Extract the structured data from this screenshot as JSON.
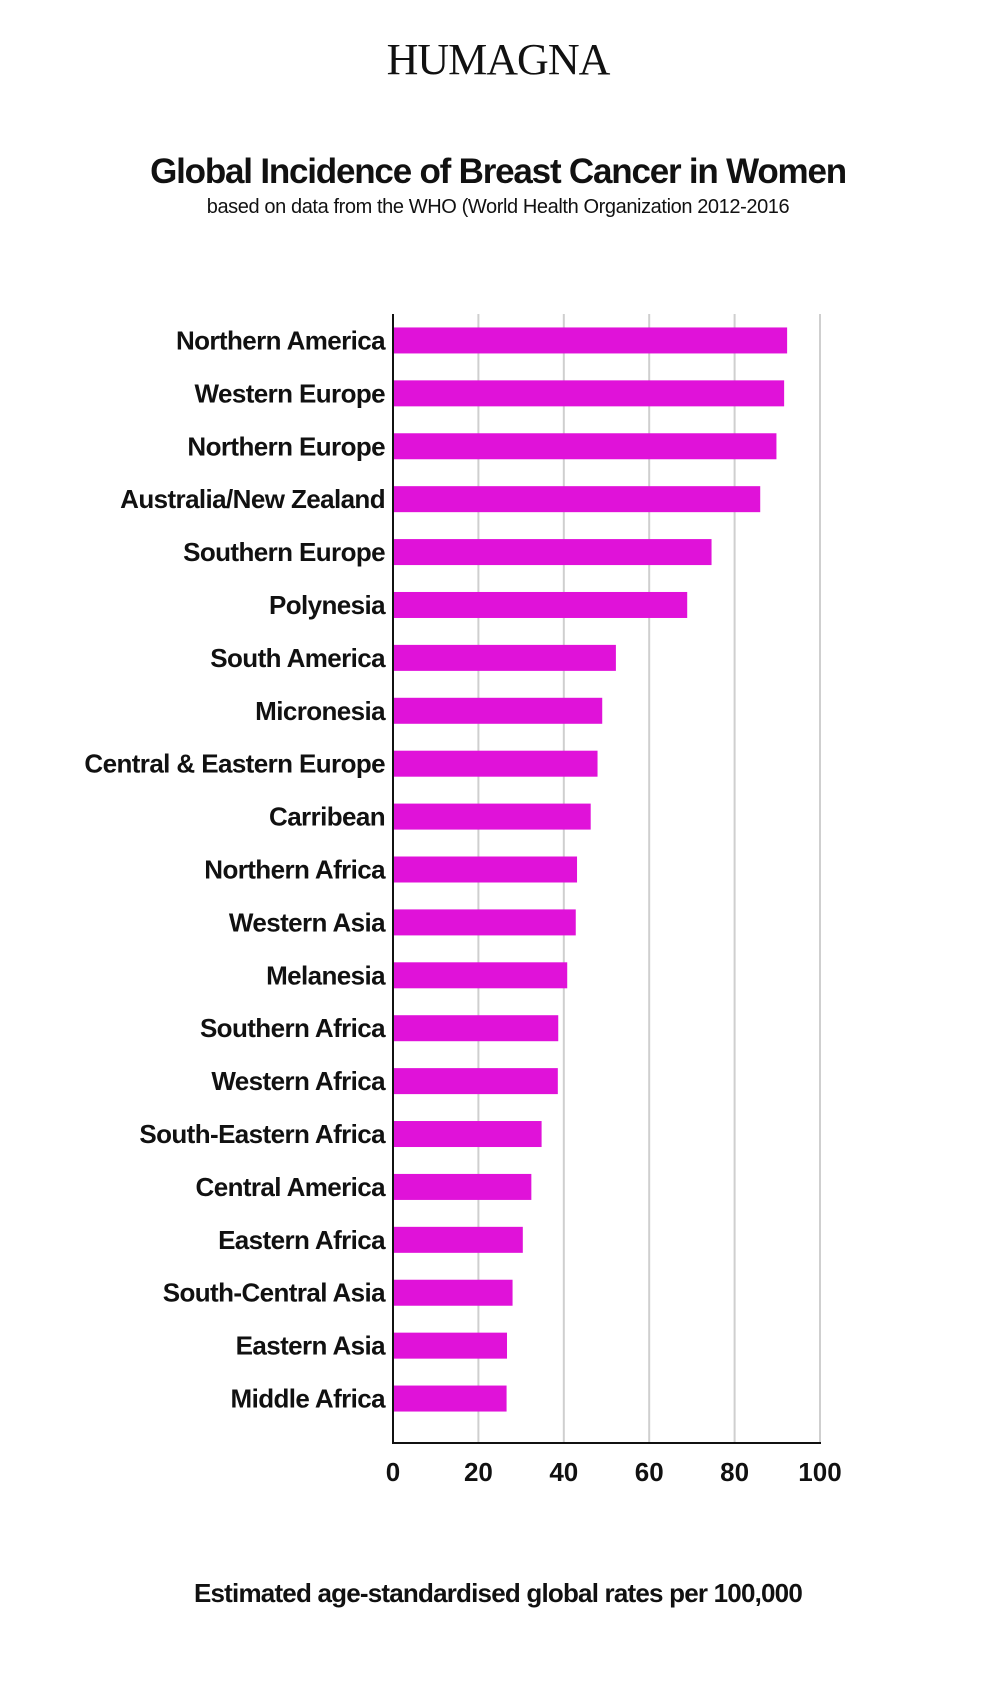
{
  "brand": "HUMAGNA",
  "chart_data": {
    "type": "bar",
    "orientation": "horizontal",
    "title": "Global Incidence of Breast Cancer in Women",
    "subtitle": "based on data from the WHO (World Health Organization 2012-2016",
    "xlabel": "Estimated age-standardised global rates per 100,000",
    "ylabel": "",
    "xlim": [
      0,
      100
    ],
    "xticks": [
      0,
      20,
      40,
      60,
      80,
      100
    ],
    "grid": true,
    "bar_color": "#e012d9",
    "categories": [
      "Northern America",
      "Western Europe",
      "Northern Europe",
      "Australia/New Zealand",
      "Southern Europe",
      "Polynesia",
      "South America",
      "Micronesia",
      "Central & Eastern Europe",
      "Carribean",
      "Northern Africa",
      "Western Asia",
      "Melanesia",
      "Southern Africa",
      "Western Africa",
      "South-Eastern Africa",
      "Central America",
      "Eastern Africa",
      "South-Central Asia",
      "Eastern Asia",
      "Middle Africa"
    ],
    "values": [
      92.3,
      91.6,
      89.8,
      86.0,
      74.6,
      68.9,
      52.2,
      49.0,
      47.9,
      46.3,
      43.1,
      42.8,
      40.8,
      38.7,
      38.6,
      34.8,
      32.4,
      30.4,
      28.0,
      26.7,
      26.6
    ]
  }
}
